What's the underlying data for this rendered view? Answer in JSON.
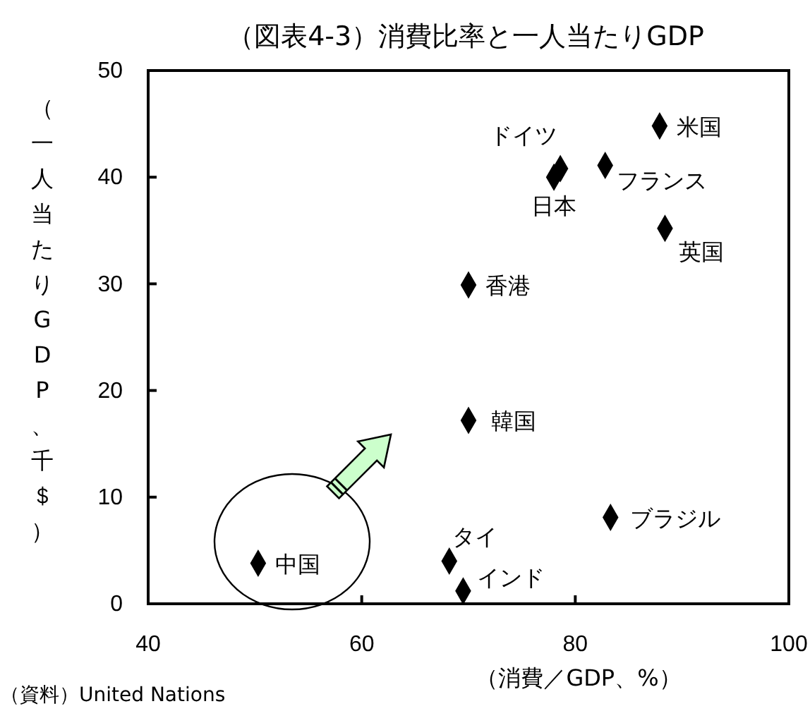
{
  "chart_data": {
    "type": "scatter",
    "title": "（図表4-3）消費比率と一人当たりGDP",
    "xlabel": "（消費／GDP、%）",
    "ylabel": "（一人当たりGDP、千＄）",
    "xlim": [
      40,
      100
    ],
    "xticks": [
      40,
      60,
      80,
      100
    ],
    "ylim": [
      0,
      50
    ],
    "yticks": [
      0,
      10,
      20,
      30,
      40,
      50
    ],
    "marker": "diamond",
    "series": [
      {
        "color": "#000000",
        "x": [
          87.9,
          78.6,
          78.0,
          82.8,
          88.4,
          70.0,
          70.0,
          83.3,
          68.2,
          69.5,
          50.3
        ],
        "values": [
          44.8,
          40.8,
          40.0,
          41.1,
          35.2,
          29.9,
          17.2,
          8.1,
          4.0,
          1.2,
          3.8
        ]
      }
    ],
    "annotations": [
      {
        "text": "米国",
        "x": 87.9,
        "y": 44.8
      },
      {
        "text": "ドイツ",
        "x": 78.6,
        "y": 40.8
      },
      {
        "text": "日本",
        "x": 78.0,
        "y": 40.0
      },
      {
        "text": "フランス",
        "x": 82.8,
        "y": 41.1
      },
      {
        "text": "英国",
        "x": 88.4,
        "y": 35.2
      },
      {
        "text": "香港",
        "x": 70.0,
        "y": 29.9
      },
      {
        "text": "韓国",
        "x": 70.0,
        "y": 17.2
      },
      {
        "text": "ブラジル",
        "x": 83.3,
        "y": 8.1
      },
      {
        "text": "タイ",
        "x": 68.2,
        "y": 4.0
      },
      {
        "text": "インド",
        "x": 69.5,
        "y": 1.2
      },
      {
        "text": "中国",
        "x": 50.3,
        "y": 3.8
      },
      "（資料）United Nations"
    ]
  }
}
